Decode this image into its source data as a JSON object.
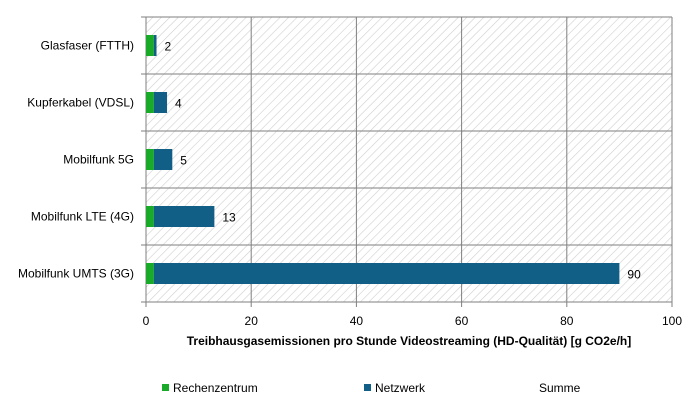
{
  "chart_data": {
    "type": "bar",
    "orientation": "horizontal",
    "stacked": true,
    "categories": [
      "Glasfaser (FTTH)",
      "Kupferkabel (VDSL)",
      "Mobilfunk 5G",
      "Mobilfunk LTE (4G)",
      "Mobilfunk UMTS (3G)"
    ],
    "series": [
      {
        "name": "Rechenzentrum",
        "values": [
          1.5,
          1.5,
          1.5,
          1.5,
          1.5
        ],
        "color": "#1aaa2a"
      },
      {
        "name": "Netzwerk",
        "values": [
          0.5,
          2.5,
          3.5,
          11.5,
          88.5
        ],
        "color": "#115e86"
      }
    ],
    "totals_series_name": "Summe",
    "totals": [
      2,
      4,
      5,
      13,
      90
    ],
    "xlim": [
      0,
      100
    ],
    "xticks": [
      "0",
      "20",
      "40",
      "60",
      "80",
      "100"
    ],
    "xlabel": "Treibhausgasemissionen pro Stunde Videostreaming (HD-Qualität) [g CO2e/h]",
    "ylabel": "",
    "title": "",
    "grid": true,
    "legend_position": "bottom"
  }
}
